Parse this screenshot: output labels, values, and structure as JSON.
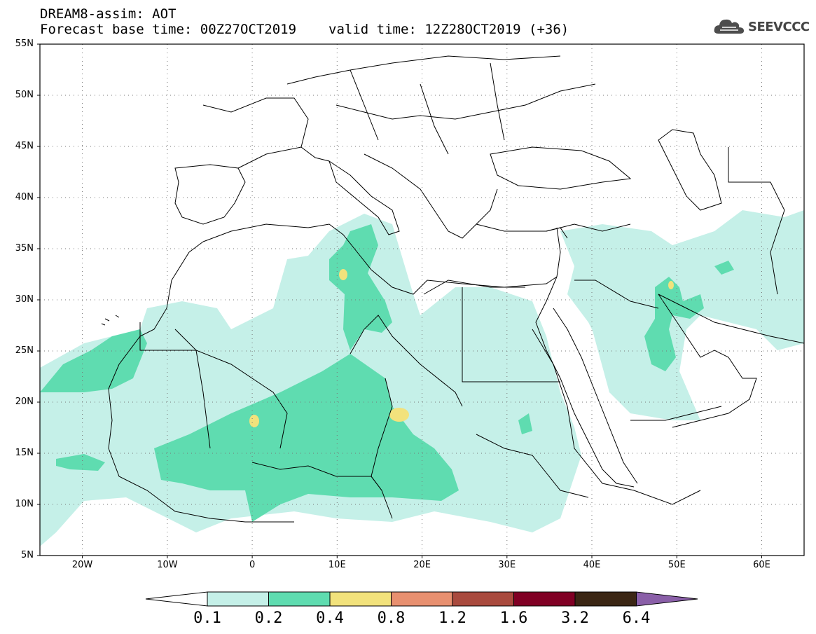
{
  "header": {
    "title": "DREAM8-assim: AOT",
    "base_time_label": "Forecast base time: 00Z27OCT2019",
    "valid_time_label": "valid time: 12Z28OCT2019 (+36)"
  },
  "logo": {
    "text": "SEEVCCC",
    "icon": "cloud-icon"
  },
  "map": {
    "projection": "lat-lon",
    "lon_range": [
      -25,
      65
    ],
    "lat_range": [
      5,
      55
    ],
    "gridlines": "dotted",
    "lat_ticks": [
      "55N",
      "50N",
      "45N",
      "40N",
      "35N",
      "30N",
      "25N",
      "20N",
      "15N",
      "10N",
      "5N"
    ],
    "lon_ticks": [
      "20W",
      "10W",
      "0",
      "10E",
      "20E",
      "30E",
      "40E",
      "50E",
      "60E"
    ]
  },
  "colorbar": {
    "labels": [
      "0.1",
      "0.2",
      "0.4",
      "0.8",
      "1.2",
      "1.6",
      "3.2",
      "6.4"
    ],
    "colors": [
      "#c5f0e8",
      "#5fdcb0",
      "#f2e27c",
      "#e89070",
      "#a94a3e",
      "#800024",
      "#3b2614",
      "#8a5fa8"
    ],
    "low_arrow_color": "#ffffff"
  }
}
